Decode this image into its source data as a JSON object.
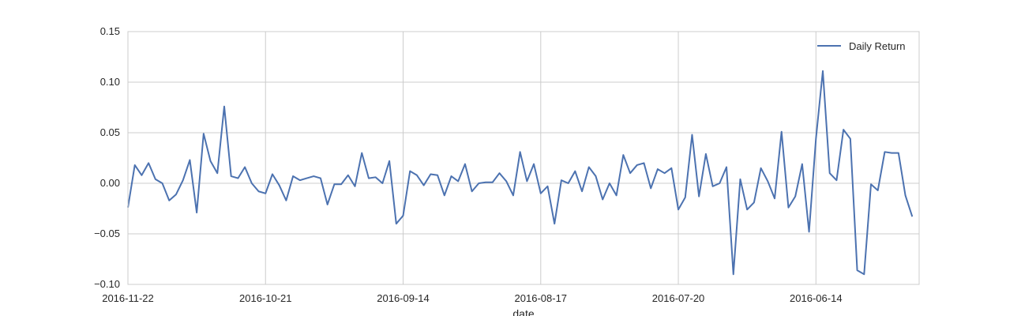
{
  "chart_data": {
    "type": "line",
    "title": "",
    "xlabel": "date",
    "ylabel": "",
    "ylim": [
      -0.1,
      0.15
    ],
    "yticks": [
      -0.1,
      -0.05,
      0.0,
      0.05,
      0.1,
      0.15
    ],
    "ytick_labels": [
      "−0.10",
      "−0.05",
      "0.00",
      "0.05",
      "0.10",
      "0.15"
    ],
    "xtick_labels": [
      "2016-11-22",
      "2016-10-21",
      "2016-09-14",
      "2016-08-17",
      "2016-07-20",
      "2016-06-14"
    ],
    "xtick_positions": [
      0,
      20,
      40,
      60,
      80,
      100
    ],
    "xlim": [
      0,
      115
    ],
    "grid": true,
    "legend_position": "upper-right",
    "color": "#4c72b0",
    "series": [
      {
        "name": "Daily Return",
        "values": [
          -0.024,
          0.018,
          0.008,
          0.02,
          0.004,
          0.0,
          -0.017,
          -0.011,
          0.003,
          0.023,
          -0.029,
          0.049,
          0.022,
          0.01,
          0.076,
          0.007,
          0.005,
          0.016,
          0.0,
          -0.008,
          -0.01,
          0.009,
          -0.002,
          -0.017,
          0.007,
          0.003,
          0.005,
          0.007,
          0.005,
          -0.021,
          -0.001,
          -0.001,
          0.008,
          -0.003,
          0.03,
          0.005,
          0.006,
          0.0,
          0.022,
          -0.04,
          -0.032,
          0.012,
          0.008,
          -0.002,
          0.009,
          0.008,
          -0.012,
          0.007,
          0.002,
          0.019,
          -0.008,
          0.0,
          0.001,
          0.001,
          0.01,
          0.002,
          -0.012,
          0.031,
          0.002,
          0.019,
          -0.01,
          -0.003,
          -0.04,
          0.003,
          0.0,
          0.012,
          -0.008,
          0.016,
          0.007,
          -0.016,
          0.0,
          -0.012,
          0.028,
          0.01,
          0.018,
          0.02,
          -0.005,
          0.014,
          0.01,
          0.015,
          -0.026,
          -0.014,
          0.048,
          -0.013,
          0.029,
          -0.003,
          0.0,
          0.016,
          -0.09,
          0.004,
          -0.026,
          -0.019,
          0.015,
          0.002,
          -0.015,
          0.051,
          -0.024,
          -0.013,
          0.019,
          -0.048,
          0.044,
          0.111,
          0.01,
          0.003,
          0.053,
          0.044,
          -0.086,
          -0.09,
          -0.001,
          -0.007,
          0.031,
          0.03,
          0.03,
          -0.012,
          -0.033
        ]
      }
    ]
  }
}
